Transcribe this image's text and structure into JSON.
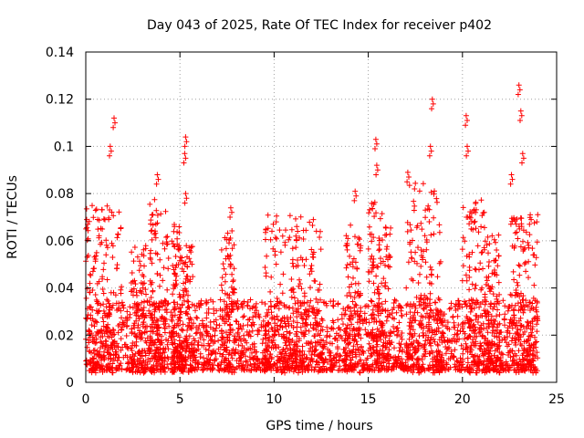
{
  "chart_data": {
    "type": "scatter",
    "title": "Day 043 of 2025, Rate Of TEC Index for receiver p402",
    "xlabel": "GPS time / hours",
    "ylabel": "ROTI / TECUs",
    "xlim": [
      0,
      25
    ],
    "ylim": [
      0,
      0.14
    ],
    "xticks": [
      0,
      5,
      10,
      15,
      20,
      25
    ],
    "xtick_labels": [
      "0",
      "5",
      "10",
      "15",
      "20",
      "25"
    ],
    "yticks": [
      0,
      0.02,
      0.04,
      0.06,
      0.08,
      0.1,
      0.12,
      0.14
    ],
    "ytick_labels": [
      "0",
      "0.02",
      "0.04",
      "0.06",
      "0.08",
      "0.1",
      "0.12",
      "0.14"
    ],
    "grid": true,
    "marker": "+",
    "color": "#ff0000",
    "x_range_hours": [
      0,
      24
    ],
    "typical_y": [
      0.005,
      0.035
    ],
    "notable_points": [
      {
        "x": 0.05,
        "y": 0.069
      },
      {
        "x": 1.3,
        "y": 0.1
      },
      {
        "x": 1.5,
        "y": 0.112
      },
      {
        "x": 3.8,
        "y": 0.088
      },
      {
        "x": 5.3,
        "y": 0.104
      },
      {
        "x": 5.25,
        "y": 0.097
      },
      {
        "x": 5.3,
        "y": 0.08
      },
      {
        "x": 7.7,
        "y": 0.074
      },
      {
        "x": 11.2,
        "y": 0.066
      },
      {
        "x": 14.3,
        "y": 0.081
      },
      {
        "x": 15.4,
        "y": 0.103
      },
      {
        "x": 15.45,
        "y": 0.092
      },
      {
        "x": 17.1,
        "y": 0.089
      },
      {
        "x": 18.3,
        "y": 0.1
      },
      {
        "x": 18.4,
        "y": 0.12
      },
      {
        "x": 20.2,
        "y": 0.113
      },
      {
        "x": 20.25,
        "y": 0.1
      },
      {
        "x": 22.6,
        "y": 0.088
      },
      {
        "x": 23.0,
        "y": 0.126
      },
      {
        "x": 23.1,
        "y": 0.115
      },
      {
        "x": 23.2,
        "y": 0.097
      },
      {
        "x": 23.6,
        "y": 0.071
      }
    ],
    "activity_bursts": [
      {
        "x": [
          0,
          1.9
        ],
        "peak": 0.075
      },
      {
        "x": [
          2.4,
          3.2
        ],
        "peak": 0.058
      },
      {
        "x": [
          3.4,
          4.4
        ],
        "peak": 0.078
      },
      {
        "x": [
          4.5,
          5.0
        ],
        "peak": 0.068
      },
      {
        "x": [
          5.0,
          5.7
        ],
        "peak": 0.058
      },
      {
        "x": [
          7.2,
          7.9
        ],
        "peak": 0.065
      },
      {
        "x": [
          9.5,
          12.5
        ],
        "peak": 0.072
      },
      {
        "x": [
          13.8,
          14.6
        ],
        "peak": 0.07
      },
      {
        "x": [
          15.0,
          16.2
        ],
        "peak": 0.078
      },
      {
        "x": [
          17.0,
          19.0
        ],
        "peak": 0.085
      },
      {
        "x": [
          20.0,
          21.2
        ],
        "peak": 0.078
      },
      {
        "x": [
          21.2,
          22.0
        ],
        "peak": 0.065
      },
      {
        "x": [
          22.5,
          24.0
        ],
        "peak": 0.072
      }
    ]
  }
}
